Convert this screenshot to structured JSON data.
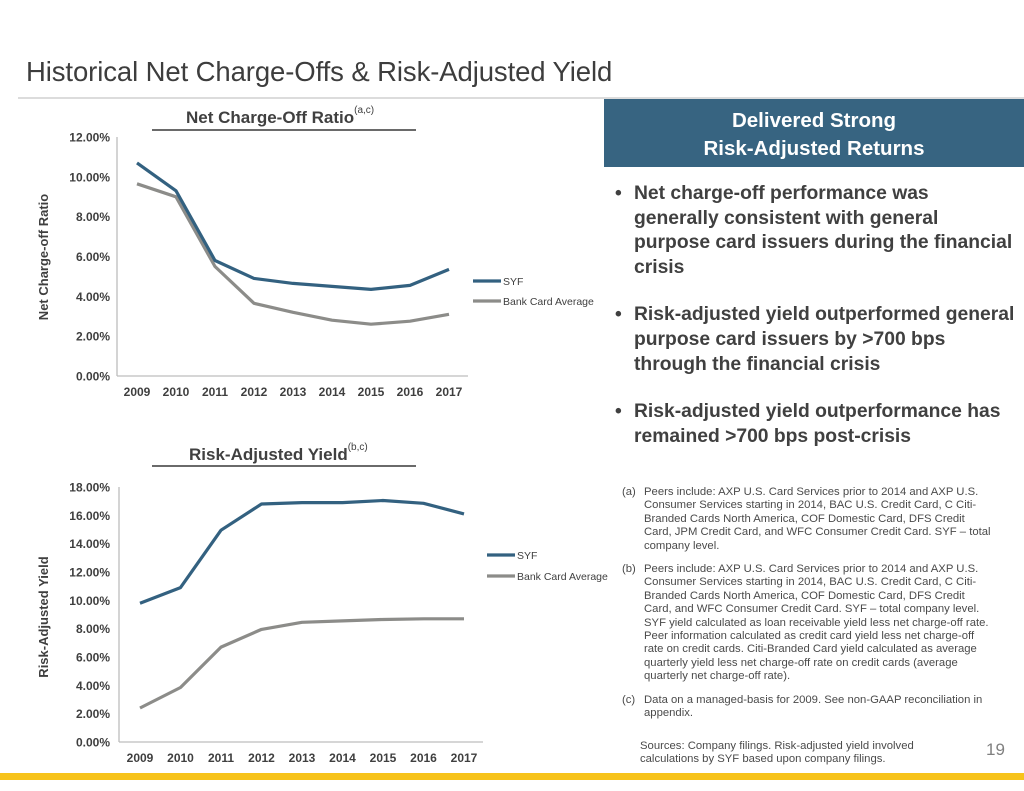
{
  "page": {
    "title": "Historical Net Charge-Offs & Risk-Adjusted Yield",
    "page_number": "19",
    "colors": {
      "syf": "#336180",
      "bank_card_average": "#8c8c89",
      "banner": "#376481",
      "footer_bar": "#f7c31b"
    }
  },
  "banner": {
    "line1": "Delivered Strong",
    "line2": "Risk-Adjusted Returns"
  },
  "bullets": [
    {
      "icon": "bullet-dot",
      "text": "Net charge-off performance was generally consistent with general purpose card issuers during the financial crisis"
    },
    {
      "icon": "bullet-dot",
      "text": "Risk-adjusted yield outperformed general purpose card issuers by >700 bps through the financial crisis"
    },
    {
      "icon": "bullet-dot",
      "text": "Risk-adjusted yield outperformance has remained >700 bps post-crisis"
    }
  ],
  "footnotes": [
    {
      "tag": "(a)",
      "text": "Peers include: AXP U.S. Card Services prior to 2014 and AXP U.S. Consumer Services starting in 2014, BAC U.S. Credit Card, C Citi-Branded Cards North America, COF Domestic Card, DFS Credit Card, JPM Credit Card, and WFC Consumer Credit Card.  SYF – total company level."
    },
    {
      "tag": "(b)",
      "text": "Peers include: AXP U.S. Card Services prior to 2014 and AXP U.S. Consumer Services starting in 2014, BAC U.S. Credit Card, C Citi-Branded Cards North America, COF Domestic Card, DFS Credit Card, and WFC Consumer Credit Card. SYF – total company level. SYF yield calculated as loan receivable yield less net charge-off rate. Peer information calculated as credit card yield less net charge-off rate on credit cards. Citi-Branded Card yield calculated as average quarterly yield less net charge-off rate on credit cards (average quarterly net charge-off rate)."
    },
    {
      "tag": "(c)",
      "text": "Data on a managed-basis for 2009. See non-GAAP reconciliation in appendix."
    }
  ],
  "sources": "Sources: Company filings. Risk-adjusted yield involved calculations by SYF based upon company filings.",
  "chart_data": [
    {
      "type": "line",
      "title": "Net Charge-Off Ratio",
      "title_superscript": "(a,c)",
      "xlabel": "",
      "ylabel": "Net Charge-off Ratio",
      "x": [
        "2009",
        "2010",
        "2011",
        "2012",
        "2013",
        "2014",
        "2015",
        "2016",
        "2017"
      ],
      "ylim": [
        0,
        12
      ],
      "yticks": [
        0,
        2,
        4,
        6,
        8,
        10,
        12
      ],
      "ytick_labels": [
        "0.00%",
        "2.00%",
        "4.00%",
        "6.00%",
        "8.00%",
        "10.00%",
        "12.00%"
      ],
      "grid": false,
      "legend_position": "right",
      "series": [
        {
          "name": "SYF",
          "color": "#336180",
          "values": [
            10.7,
            9.3,
            5.8,
            4.9,
            4.65,
            4.5,
            4.35,
            4.55,
            5.35
          ]
        },
        {
          "name": "Bank Card Average",
          "color": "#8c8c89",
          "values": [
            9.65,
            9.0,
            5.5,
            3.65,
            3.2,
            2.8,
            2.6,
            2.75,
            3.1
          ]
        }
      ]
    },
    {
      "type": "line",
      "title": "Risk-Adjusted Yield",
      "title_superscript": "(b,c)",
      "xlabel": "",
      "ylabel": "Risk-Adjusted Yield",
      "x": [
        "2009",
        "2010",
        "2011",
        "2012",
        "2013",
        "2014",
        "2015",
        "2016",
        "2017"
      ],
      "ylim": [
        0,
        18
      ],
      "yticks": [
        0,
        2,
        4,
        6,
        8,
        10,
        12,
        14,
        16,
        18
      ],
      "ytick_labels": [
        "0.00%",
        "2.00%",
        "4.00%",
        "6.00%",
        "8.00%",
        "10.00%",
        "12.00%",
        "14.00%",
        "16.00%",
        "18.00%"
      ],
      "grid": false,
      "legend_position": "right",
      "series": [
        {
          "name": "SYF",
          "color": "#336180",
          "values": [
            9.8,
            10.9,
            14.95,
            16.8,
            16.9,
            16.9,
            17.05,
            16.85,
            16.1
          ]
        },
        {
          "name": "Bank Card Average",
          "color": "#8c8c89",
          "values": [
            2.4,
            3.85,
            6.7,
            7.95,
            8.45,
            8.55,
            8.65,
            8.7,
            8.7
          ]
        }
      ]
    }
  ]
}
